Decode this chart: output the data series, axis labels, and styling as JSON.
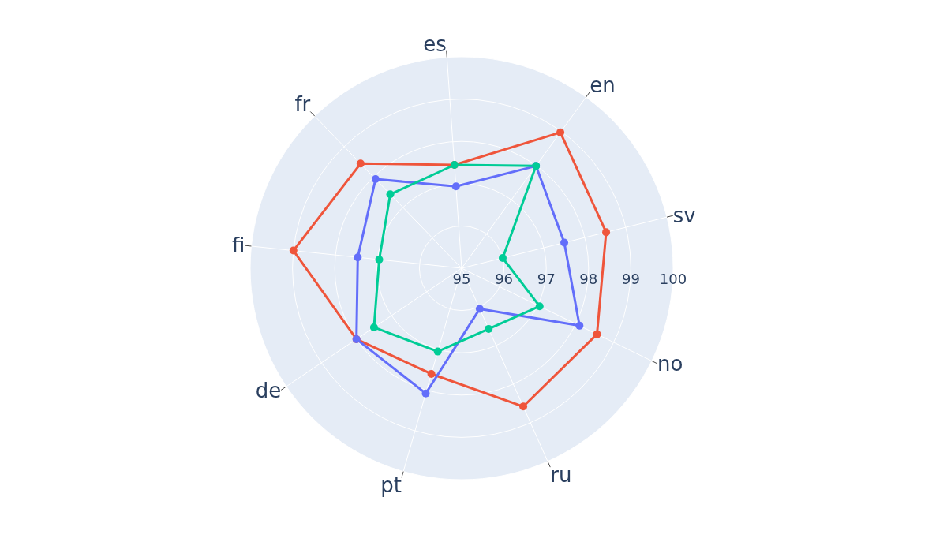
{
  "chart_data": {
    "type": "radar",
    "categories": [
      "es",
      "en",
      "sv",
      "no",
      "ru",
      "pt",
      "de",
      "fi",
      "fr"
    ],
    "series": [
      {
        "color": "#ef553b",
        "values": [
          97.45,
          98.97,
          98.52,
          98.56,
          98.58,
          97.6,
          98.0,
          99.0,
          98.44
        ]
      },
      {
        "color": "#636efa",
        "values": [
          96.94,
          97.99,
          97.5,
          98.1,
          96.05,
          98.08,
          98.0,
          97.47,
          97.93
        ]
      },
      {
        "color": "#00cc96",
        "values": [
          97.45,
          97.99,
          96.0,
          97.05,
          96.57,
          97.05,
          97.5,
          96.96,
          97.43
        ]
      }
    ],
    "ylim": [
      95,
      100
    ],
    "yticks": [
      95,
      96,
      97,
      98,
      99,
      100
    ],
    "marker": "circle",
    "grid": true
  }
}
